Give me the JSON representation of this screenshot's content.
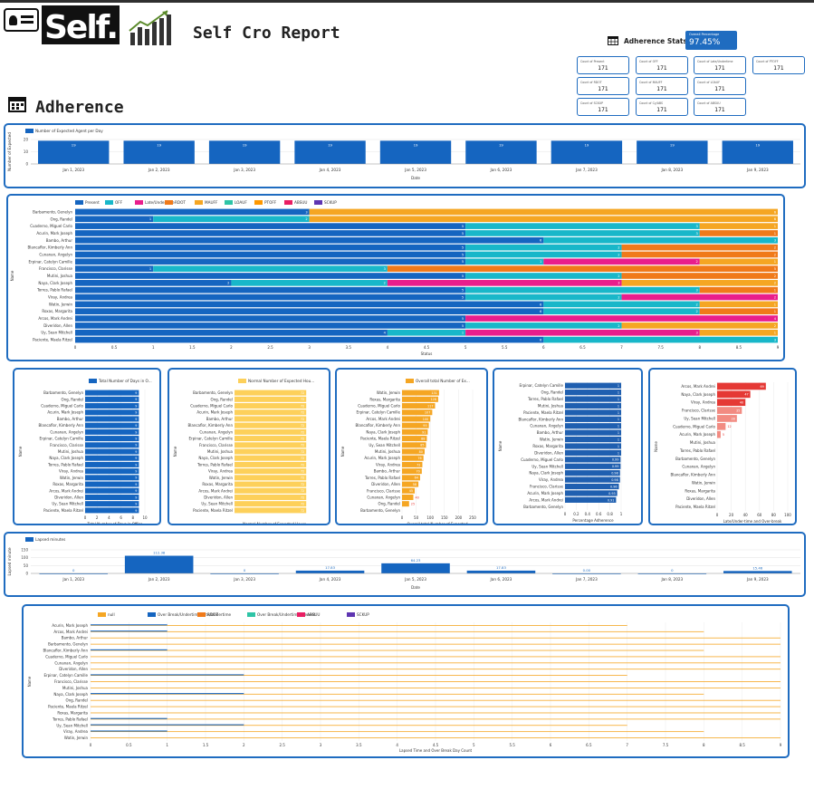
{
  "header": {
    "logo_text": "Self.",
    "title": "Self Cro Report",
    "section_title": "Adherence",
    "stats_title": "Adherence Stats"
  },
  "overall": {
    "label": "Overall Percentage",
    "value": "97.45%"
  },
  "stat_cards": [
    {
      "label": "Count of Present",
      "value": "171"
    },
    {
      "label": "Count of OFF",
      "value": "171"
    },
    {
      "label": "Count of Late/Undertime",
      "value": "171"
    },
    {
      "label": "Count of PTOFF",
      "value": "171"
    },
    {
      "label": "Count of RDOT",
      "value": "171"
    },
    {
      "label": "Count of MAUFF",
      "value": "171"
    },
    {
      "label": "Count of LOAUF",
      "value": "171"
    },
    {
      "label": "Count of SCKUP",
      "value": "171"
    },
    {
      "label": "Count of Cy/ABS",
      "value": "171"
    },
    {
      "label": "Count of ABSUU",
      "value": "171"
    }
  ],
  "colors": {
    "accent": "#1f6cc0",
    "series": [
      "#1565c0",
      "#18b7c9",
      "#e91e8c",
      "#f07a1a",
      "#f5a623",
      "#2ec4a6",
      "#ff9800",
      "#e91e63",
      "#5e35b1"
    ],
    "yellow": "#fdd05a",
    "orange": "#f5a623",
    "red": "#e53935"
  },
  "chart_data": [
    {
      "id": "expected_per_day",
      "type": "bar",
      "legend": [
        "Number of Expected Agent per Day"
      ],
      "ylabel": "Number of Expected",
      "xlabel": "Date",
      "categories": [
        "Jan 1, 2023",
        "Jan 2, 2023",
        "Jan 3, 2023",
        "Jan 4, 2023",
        "Jan 5, 2023",
        "Jan 6, 2023",
        "Jan 7, 2023",
        "Jan 8, 2023",
        "Jan 9, 2023"
      ],
      "values": [
        19,
        19,
        19,
        19,
        19,
        19,
        19,
        19,
        19
      ],
      "ylim": [
        0,
        20
      ],
      "yticks": [
        "20",
        "10",
        "0"
      ]
    },
    {
      "id": "status_stacked",
      "type": "bar",
      "orientation": "horizontal",
      "stacked": true,
      "xlabel": "Status",
      "ylabel": "Name",
      "legend": [
        "Present",
        "OFF",
        "Late/Undertime",
        "RDOT",
        "MAUFF",
        "LOAUF",
        "PTOFF",
        "ABSUU",
        "SCKUP"
      ],
      "categories": [
        "Barbamento, Genelyn",
        "Ong, Randel",
        "Cuaderno, Miguel Carlo",
        "Acurin, Mark Joseph",
        "Bambo, Arthur",
        "Blancaflor, Kimberly Ann",
        "Cunanan, Angelyn",
        "Erpinar, Catelyn Camille",
        "Francisco, Clarisse",
        "Mutini, Joshua",
        "Naya, Clark Joseph",
        "Torres, Pablo Rafael",
        "Viray, Andrea",
        "Watin, Jerwin",
        "Roxas, Margarita",
        "Arcos, Mark Andrei",
        "Diveridon, Allen",
        "Uy, Sean Mitchell",
        "Paciente, Maela Ritzel"
      ],
      "series": [
        {
          "name": "Present",
          "values": [
            3,
            1,
            5,
            5,
            6,
            5,
            5,
            5,
            1,
            5,
            2,
            5,
            5,
            6,
            6,
            5,
            5,
            4,
            6
          ]
        },
        {
          "name": "OFF",
          "values": [
            0,
            2,
            3,
            3,
            3,
            2,
            2,
            1,
            3,
            2,
            2,
            3,
            2,
            2,
            2,
            0,
            2,
            1,
            3
          ]
        },
        {
          "name": "Late/Undertime",
          "values": [
            0,
            0,
            0,
            0,
            0,
            0,
            0,
            2,
            0,
            0,
            3,
            0,
            2,
            0,
            0,
            4,
            0,
            3,
            0
          ]
        },
        {
          "name": "RDOT",
          "values": [
            0,
            0,
            0,
            1,
            0,
            2,
            2,
            0,
            5,
            2,
            0,
            1,
            0,
            0,
            1,
            0,
            0,
            0,
            0
          ]
        },
        {
          "name": "MAUFF",
          "values": [
            6,
            6,
            1,
            0,
            0,
            0,
            0,
            1,
            0,
            0,
            2,
            0,
            0,
            1,
            0,
            0,
            2,
            1,
            0
          ]
        }
      ],
      "xlim": [
        0,
        9
      ],
      "xticks": [
        "0",
        "0.5",
        "1",
        "1.5",
        "2",
        "2.5",
        "3",
        "3.5",
        "4",
        "4.5",
        "5",
        "5.5",
        "6",
        "6.5",
        "7",
        "7.5",
        "8",
        "8.5",
        "9"
      ]
    },
    {
      "id": "days_in_office",
      "type": "bar",
      "orientation": "horizontal",
      "legend": [
        "Total Number of Days in O..."
      ],
      "xlabel": "Total Number of Days in Office",
      "ylabel": "Name",
      "categories": [
        "Barbamento, Genelyn",
        "Ong, Randel",
        "Cuaderno, Miguel Carlo",
        "Acurin, Mark Joseph",
        "Bambo, Arthur",
        "Blancaflor, Kimberly Ann",
        "Cunanan, Angelyn",
        "Erpinar, Catelyn Camille",
        "Francisco, Clarisse",
        "Mutini, Joshua",
        "Naya, Clark Joseph",
        "Torres, Pablo Rafael",
        "Viray, Andrea",
        "Watin, Jerwin",
        "Roxas, Margarita",
        "Arcos, Mark Andrei",
        "Diveridon, Allen",
        "Uy, Sean Mitchell",
        "Paciente, Maela Ritzel"
      ],
      "values": [
        9,
        9,
        9,
        9,
        9,
        9,
        9,
        9,
        9,
        9,
        9,
        9,
        9,
        9,
        9,
        9,
        9,
        9,
        9
      ],
      "xlim": [
        0,
        10
      ],
      "xticks": [
        "0",
        "2",
        "4",
        "6",
        "8",
        "10"
      ]
    },
    {
      "id": "expected_hours",
      "type": "bar",
      "orientation": "horizontal",
      "legend": [
        "Normal Number of Expected Hou..."
      ],
      "xlabel": "Normal Number of Expected Hours",
      "ylabel": "Name",
      "categories": [
        "Barbamento, Genelyn",
        "Ong, Randel",
        "Cuaderno, Miguel Carlo",
        "Acurin, Mark Joseph",
        "Bambo, Arthur",
        "Blancaflor, Kimberly Ann",
        "Cunanan, Angelyn",
        "Erpinar, Catelyn Camille",
        "Francisco, Clarisse",
        "Mutini, Joshua",
        "Naya, Clark Joseph",
        "Torres, Pablo Rafael",
        "Viray, Andrea",
        "Watin, Jerwin",
        "Roxas, Margarita",
        "Arcos, Mark Andrei",
        "Diveridon, Allen",
        "Uy, Sean Mitchell",
        "Paciente, Maela Ritzel"
      ],
      "values": [
        72,
        72,
        72,
        72,
        72,
        72,
        72,
        72,
        72,
        72,
        72,
        72,
        72,
        72,
        72,
        72,
        72,
        72,
        72
      ],
      "xlim": [
        0,
        80
      ]
    },
    {
      "id": "hours_overtime",
      "type": "bar",
      "orientation": "horizontal",
      "legend": [
        "Overall total Number of Ex..."
      ],
      "xlabel": "Overall total Number of Expected Hours Plus Overtime",
      "ylabel": "Name",
      "categories": [
        "Watin, Jerwin",
        "Roxas, Margarita",
        "Cuaderno, Miguel Carlo",
        "Erpinar, Catelyn Camille",
        "Arcos, Mark Andrei",
        "Blancaflor, Kimberly Ann",
        "Naya, Clark Joseph",
        "Paciente, Maela Ritzel",
        "Uy, Sean Mitchell",
        "Mutini, Joshua",
        "Acurin, Mark Joseph",
        "Viray, Andrea",
        "Bambo, Arthur",
        "Torres, Pablo Rafael",
        "Diveridon, Allen",
        "Francisco, Clarisse",
        "Cunanan, Angelyn",
        "Ong, Randel",
        "Barbamento, Genelyn"
      ],
      "values": [
        131,
        128,
        117,
        107,
        100,
        95,
        91,
        88,
        85,
        80,
        76,
        72,
        70,
        64,
        58,
        45,
        40,
        25,
        0
      ],
      "xlim": [
        0,
        250
      ],
      "xticks": [
        "0",
        "50",
        "100",
        "150",
        "200",
        "250"
      ]
    },
    {
      "id": "percentage_adherence",
      "type": "bar",
      "orientation": "horizontal",
      "xlabel": "Percentage Adherence",
      "ylabel": "Name",
      "categories": [
        "Erpinar, Catelyn Camille",
        "Ong, Randel",
        "Torres, Pablo Rafael",
        "Mutini, Joshua",
        "Paciente, Maela Ritzel",
        "Blancaflor, Kimberly Ann",
        "Cunanan, Angelyn",
        "Bambo, Arthur",
        "Watin, Jerwin",
        "Roxas, Margarita",
        "Diveridon, Allen",
        "Cuaderno, Miguel Carlo",
        "Uy, Sean Mitchell",
        "Naya, Clark Joseph",
        "Viray, Andrea",
        "Francisco, Clarisse",
        "Acurin, Mark Joseph",
        "Arcos, Mark Andrei",
        "Barbamento, Genelyn"
      ],
      "values": [
        1,
        1,
        1,
        1,
        1,
        1,
        1,
        1,
        1,
        1,
        1,
        0.99,
        0.99,
        0.98,
        0.98,
        0.96,
        0.93,
        0.91,
        0
      ],
      "xlim": [
        0,
        1
      ],
      "xticks": [
        "0",
        "0.2",
        "0.4",
        "0.6",
        "0.8",
        "1"
      ]
    },
    {
      "id": "late_overbreak",
      "type": "bar",
      "orientation": "horizontal",
      "xlabel": "Late/Under-time and Over-break (per Minutes)",
      "ylabel": "Name",
      "categories": [
        "Arcos, Mark Andrei",
        "Naya, Clark Joseph",
        "Viray, Andrea",
        "Francisco, Clarisse",
        "Uy, Sean Mitchell",
        "Cuaderno, Miguel Carlo",
        "Acurin, Mark Joseph",
        "Mutini, Joshua",
        "Torres, Pablo Rafael",
        "Barbamento, Genelyn",
        "Cunanan, Angelyn",
        "Blancaflor, Kimberly Ann",
        "Watin, Jerwin",
        "Roxas, Margarita",
        "Diveridon, Allen",
        "Paciente, Maela Ritzel"
      ],
      "values": [
        69,
        47,
        40,
        35,
        28,
        12,
        5,
        0,
        0,
        0,
        0,
        0,
        0,
        0,
        0,
        0
      ],
      "xlim": [
        0,
        100
      ],
      "xticks": [
        "0",
        "20",
        "40",
        "60",
        "80",
        "100"
      ]
    },
    {
      "id": "lapsed_minutes",
      "type": "bar",
      "legend": [
        "Lapsed minutes"
      ],
      "ylabel": "Lapsed minute",
      "xlabel": "Date",
      "categories": [
        "Jan 1, 2023",
        "Jan 2, 2023",
        "Jan 3, 2023",
        "Jan 4, 2023",
        "Jan 5, 2023",
        "Jan 6, 2023",
        "Jan 7, 2023",
        "Jan 8, 2023",
        "Jan 9, 2023"
      ],
      "values": [
        0,
        112.38,
        0,
        17.83,
        64.23,
        17.83,
        0.0,
        0,
        15.46
      ],
      "value_labels": [
        "0",
        "112.38",
        "0",
        "17.83",
        "64.23",
        "17.83",
        "0.00",
        "0",
        "15.46"
      ],
      "ylim": [
        0,
        150
      ],
      "yticks": [
        "150",
        "100",
        "50",
        "0"
      ]
    },
    {
      "id": "lapsed_time_breaks",
      "type": "bar",
      "orientation": "horizontal",
      "xlabel": "Lapsed Time and Over Break Day Count",
      "ylabel": "Name",
      "legend": [
        "null",
        "Over Break/Undertime/Late/Undertime",
        "RDOT",
        "Over Break/Undertime/Present",
        "ABSUU",
        "SCKUP"
      ],
      "categories": [
        "Acurin, Mark Joseph",
        "Arcos, Mark Andrei",
        "Bambo, Arthur",
        "Barbamento, Genelyn",
        "Blancaflor, Kimberly Ann",
        "Cuaderno, Miguel Carlo",
        "Cunanan, Angelyn",
        "Diveridon, Allen",
        "Erpinar, Catelyn Camille",
        "Francisco, Clarisse",
        "Mutini, Joshua",
        "Naya, Clark Joseph",
        "Ong, Randel",
        "Paciente, Maela Ritzel",
        "Roxas, Margarita",
        "Torres, Pablo Rafael",
        "Uy, Sean Mitchell",
        "Viray, Andrea",
        "Watin, Jerwin"
      ],
      "series": [
        {
          "name": "null",
          "values": [
            7,
            8,
            9,
            9,
            8,
            9,
            9,
            9,
            7,
            9,
            9,
            8,
            9,
            9,
            9,
            9,
            7,
            8,
            9
          ]
        },
        {
          "name": "Over Break/Undertime/Late/Undertime",
          "values": [
            1,
            1,
            0,
            0,
            1,
            0,
            0,
            0,
            2,
            0,
            0,
            2,
            0,
            0,
            0,
            1,
            2,
            1,
            0
          ]
        }
      ],
      "xlim": [
        0,
        9
      ],
      "xticks": [
        "0",
        "0.5",
        "1",
        "1.5",
        "2",
        "2.5",
        "3",
        "3.5",
        "4",
        "4.5",
        "5",
        "5.5",
        "6",
        "6.5",
        "7",
        "7.5",
        "8",
        "8.5",
        "9"
      ]
    }
  ]
}
